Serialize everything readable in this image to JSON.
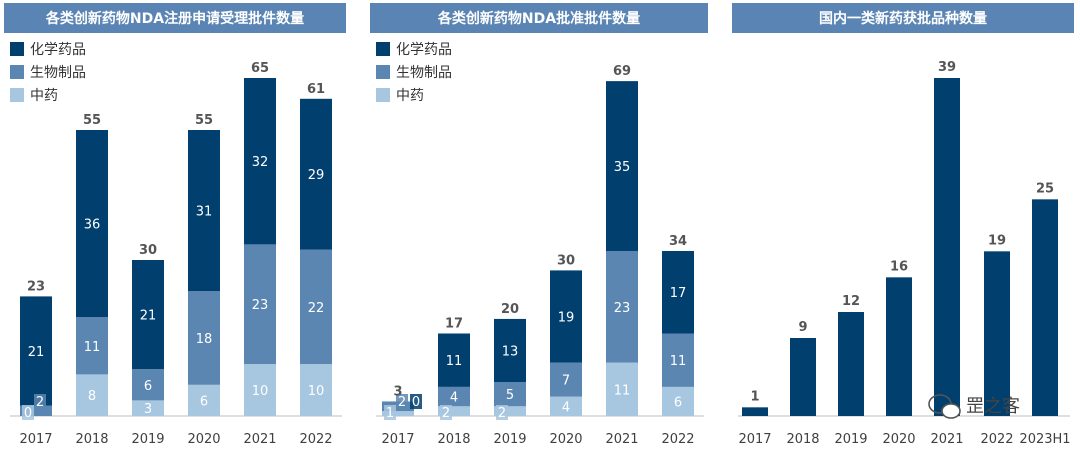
{
  "colors": {
    "title_bg": "#5a84b3",
    "chem": "#003f6e",
    "bio": "#5b86b2",
    "tcm": "#a7c7e0",
    "single": "#003f6e",
    "axis": "#bfbfbf"
  },
  "watermark": {
    "text": "罡之客",
    "icon": "wechat-icon"
  },
  "chart_data": [
    {
      "type": "bar",
      "stacked": true,
      "title": "各类创新药物NDA注册申请受理批件数量",
      "categories": [
        "2017",
        "2018",
        "2019",
        "2020",
        "2021",
        "2022"
      ],
      "series": [
        {
          "name": "化学药品",
          "values": [
            21,
            36,
            21,
            31,
            32,
            29
          ]
        },
        {
          "name": "生物制品",
          "values": [
            2,
            11,
            6,
            18,
            23,
            22
          ]
        },
        {
          "name": "中药",
          "values": [
            0,
            8,
            3,
            6,
            10,
            10
          ]
        }
      ],
      "totals": [
        23,
        55,
        30,
        55,
        65,
        61
      ],
      "legend_position": "top-left",
      "ylim": [
        0,
        70
      ]
    },
    {
      "type": "bar",
      "stacked": true,
      "title": "各类创新药物NDA批准批件数量",
      "categories": [
        "2017",
        "2018",
        "2019",
        "2020",
        "2021",
        "2022"
      ],
      "series": [
        {
          "name": "化学药品",
          "values": [
            0,
            11,
            13,
            19,
            35,
            17
          ]
        },
        {
          "name": "生物制品",
          "values": [
            2,
            4,
            5,
            7,
            23,
            11
          ]
        },
        {
          "name": "中药",
          "values": [
            1,
            2,
            2,
            4,
            11,
            6
          ]
        }
      ],
      "totals": [
        3,
        17,
        20,
        30,
        69,
        34
      ],
      "legend_position": "top-left",
      "ylim": [
        0,
        75
      ]
    },
    {
      "type": "bar",
      "stacked": false,
      "title": "国内一类新药获批品种数量",
      "categories": [
        "2017",
        "2018",
        "2019",
        "2020",
        "2021",
        "2022",
        "2023H1"
      ],
      "values": [
        1,
        9,
        12,
        16,
        39,
        19,
        25
      ],
      "ylim": [
        0,
        42
      ]
    }
  ]
}
